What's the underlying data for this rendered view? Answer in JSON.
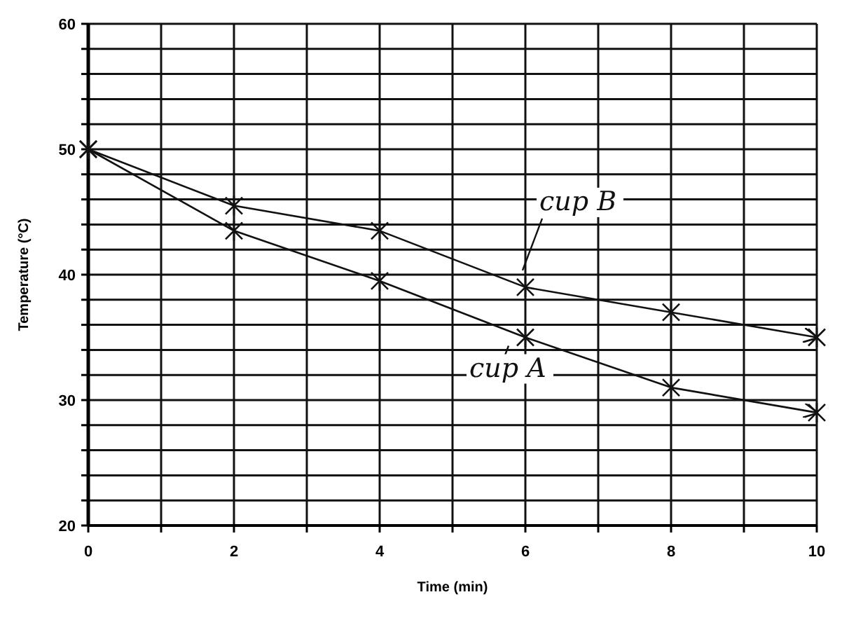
{
  "chart_data": {
    "type": "line",
    "xlabel": "Time (min)",
    "ylabel": "Temperature (°C)",
    "x": [
      0,
      2,
      4,
      6,
      8,
      10
    ],
    "series": [
      {
        "name": "cup B",
        "color": "#111111",
        "values": [
          50,
          45.5,
          43.5,
          39,
          37,
          35
        ]
      },
      {
        "name": "cup A",
        "color": "#111111",
        "values": [
          50,
          43.5,
          39.5,
          35,
          31,
          29
        ]
      }
    ],
    "xlim": [
      0,
      10
    ],
    "ylim": [
      20,
      60
    ],
    "xticks": [
      0,
      {
        "value": 1,
        "label": null
      },
      2,
      {
        "value": 3,
        "label": null
      },
      4,
      {
        "value": 5,
        "label": null
      },
      6,
      {
        "value": 7,
        "label": null
      },
      8,
      {
        "value": 9,
        "label": null
      },
      10
    ],
    "yticks": [
      20,
      {
        "value": 22,
        "label": null
      },
      {
        "value": 24,
        "label": null
      },
      {
        "value": 26,
        "label": null
      },
      {
        "value": 28,
        "label": null
      },
      30,
      {
        "value": 32,
        "label": null
      },
      {
        "value": 34,
        "label": null
      },
      {
        "value": 36,
        "label": null
      },
      {
        "value": 38,
        "label": null
      },
      40,
      {
        "value": 42,
        "label": null
      },
      {
        "value": 44,
        "label": null
      },
      {
        "value": 46,
        "label": null
      },
      {
        "value": 48,
        "label": null
      },
      50,
      {
        "value": 52,
        "label": null
      },
      {
        "value": 54,
        "label": null
      },
      {
        "value": 56,
        "label": null
      },
      {
        "value": 58,
        "label": null
      },
      60
    ],
    "grid": true,
    "marker": "cross",
    "line_style": "solid"
  }
}
